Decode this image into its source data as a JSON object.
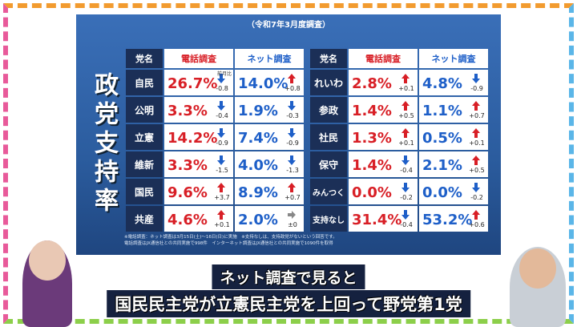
{
  "header": {
    "subtitle": "（令和7年3月度調査）",
    "title": "政党支持率"
  },
  "change_label": "前月比",
  "tables": [
    {
      "columns": [
        "党名",
        "電話調査",
        "ネット調査"
      ],
      "rows": [
        {
          "party": "自民",
          "phone": "26.7%",
          "phone_change": "-0.8",
          "net": "14.0%",
          "net_change": "+0.8"
        },
        {
          "party": "公明",
          "phone": "3.3%",
          "phone_change": "-0.4",
          "net": "1.9%",
          "net_change": "-0.3"
        },
        {
          "party": "立憲",
          "phone": "14.2%",
          "phone_change": "-0.9",
          "net": "7.4%",
          "net_change": "-0.9"
        },
        {
          "party": "維新",
          "phone": "3.3%",
          "phone_change": "-1.5",
          "net": "4.0%",
          "net_change": "-1.3"
        },
        {
          "party": "国民",
          "phone": "9.6%",
          "phone_change": "+3.7",
          "net": "8.9%",
          "net_change": "+0.7"
        },
        {
          "party": "共産",
          "phone": "4.6%",
          "phone_change": "+0.1",
          "net": "2.0%",
          "net_change": "±0"
        }
      ]
    },
    {
      "columns": [
        "党名",
        "電話調査",
        "ネット調査"
      ],
      "rows": [
        {
          "party": "れいわ",
          "phone": "2.8%",
          "phone_change": "+0.1",
          "net": "4.8%",
          "net_change": "-0.9"
        },
        {
          "party": "参政",
          "phone": "1.4%",
          "phone_change": "+0.5",
          "net": "1.1%",
          "net_change": "+0.7"
        },
        {
          "party": "社民",
          "phone": "1.3%",
          "phone_change": "+0.1",
          "net": "0.5%",
          "net_change": "+0.1"
        },
        {
          "party": "保守",
          "phone": "1.4%",
          "phone_change": "-0.4",
          "net": "2.1%",
          "net_change": "+0.5"
        },
        {
          "party": "みんつく",
          "phone": "0.0%",
          "phone_change": "-0.2",
          "net": "0.0%",
          "net_change": "-0.2"
        },
        {
          "party": "支持なし",
          "phone": "31.4%",
          "phone_change": "-0.4",
          "net": "53.2%",
          "net_change": "+0.6"
        }
      ]
    }
  ],
  "footnotes": [
    "※電話調査：ネット調査は3月15日(土)～16日(日)に実施　※支持なしは、支持政党がないという回答です。",
    "電話調査はJX通信社との共同実施で998件　インターネット調査はJX通信社との共同実施で1090件を取得"
  ],
  "caption": [
    "ネット調査で見ると",
    "国民民主党が立憲民主党を上回って野党第1党"
  ]
}
